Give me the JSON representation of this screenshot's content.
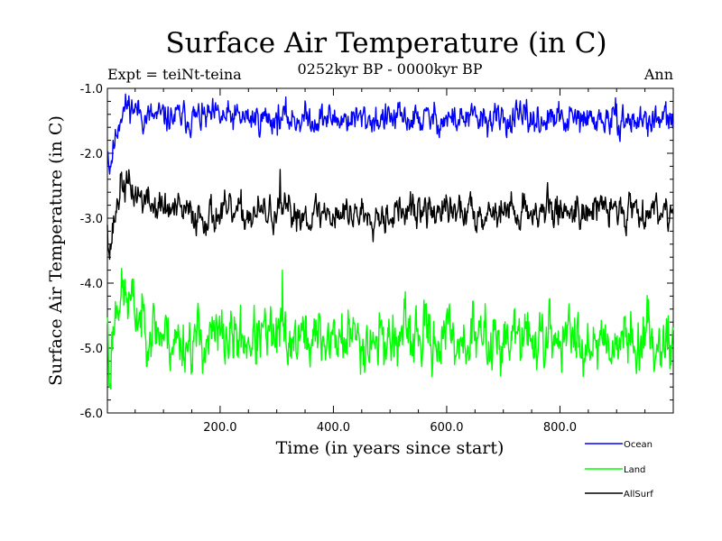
{
  "chart_data": {
    "type": "line",
    "title": "Surface Air Temperature (in C)",
    "expt_label": "Expt = teiNt-teina",
    "period_label": "0252kyr BP - 0000kyr BP",
    "season_label": "Ann",
    "xlabel": "Time (in years since start)",
    "ylabel": "Surface Air Temperature (in C)",
    "xlim": [
      1,
      1000
    ],
    "ylim": [
      -6.0,
      -1.0
    ],
    "x_ticks": [
      200,
      400,
      600,
      800
    ],
    "x_tick_labels": [
      "200.0",
      "400.0",
      "600.0",
      "800.0"
    ],
    "y_ticks": [
      -1.0,
      -2.0,
      -3.0,
      -4.0,
      -5.0,
      -6.0
    ],
    "y_tick_labels": [
      "-1.0",
      "-2.0",
      "-3.0",
      "-4.0",
      "-5.0",
      "-6.0"
    ],
    "series": [
      {
        "name": "Ocean",
        "color": "#0000ff",
        "profile": [
          [
            1,
            -1.85
          ],
          [
            5,
            -2.2
          ],
          [
            12,
            -1.9
          ],
          [
            25,
            -1.35
          ],
          [
            40,
            -1.25
          ],
          [
            70,
            -1.45
          ],
          [
            1000,
            -1.5
          ]
        ],
        "noise": 0.14,
        "seed": 11
      },
      {
        "name": "Land",
        "color": "#00ff00",
        "profile": [
          [
            1,
            -4.4
          ],
          [
            4,
            -5.6
          ],
          [
            10,
            -4.8
          ],
          [
            20,
            -4.1
          ],
          [
            35,
            -4.25
          ],
          [
            60,
            -4.55
          ],
          [
            120,
            -4.9
          ],
          [
            200,
            -4.85
          ],
          [
            1000,
            -4.85
          ]
        ],
        "noise": 0.28,
        "seed": 23,
        "spike": [
          310,
          -3.8
        ]
      },
      {
        "name": "AllSurf",
        "color": "#000000",
        "profile": [
          [
            1,
            -3.0
          ],
          [
            5,
            -3.5
          ],
          [
            12,
            -3.1
          ],
          [
            25,
            -2.45
          ],
          [
            40,
            -2.55
          ],
          [
            80,
            -2.8
          ],
          [
            150,
            -2.95
          ],
          [
            1000,
            -2.85
          ]
        ],
        "noise": 0.16,
        "seed": 37,
        "spike": [
          306,
          -2.25
        ]
      }
    ]
  }
}
